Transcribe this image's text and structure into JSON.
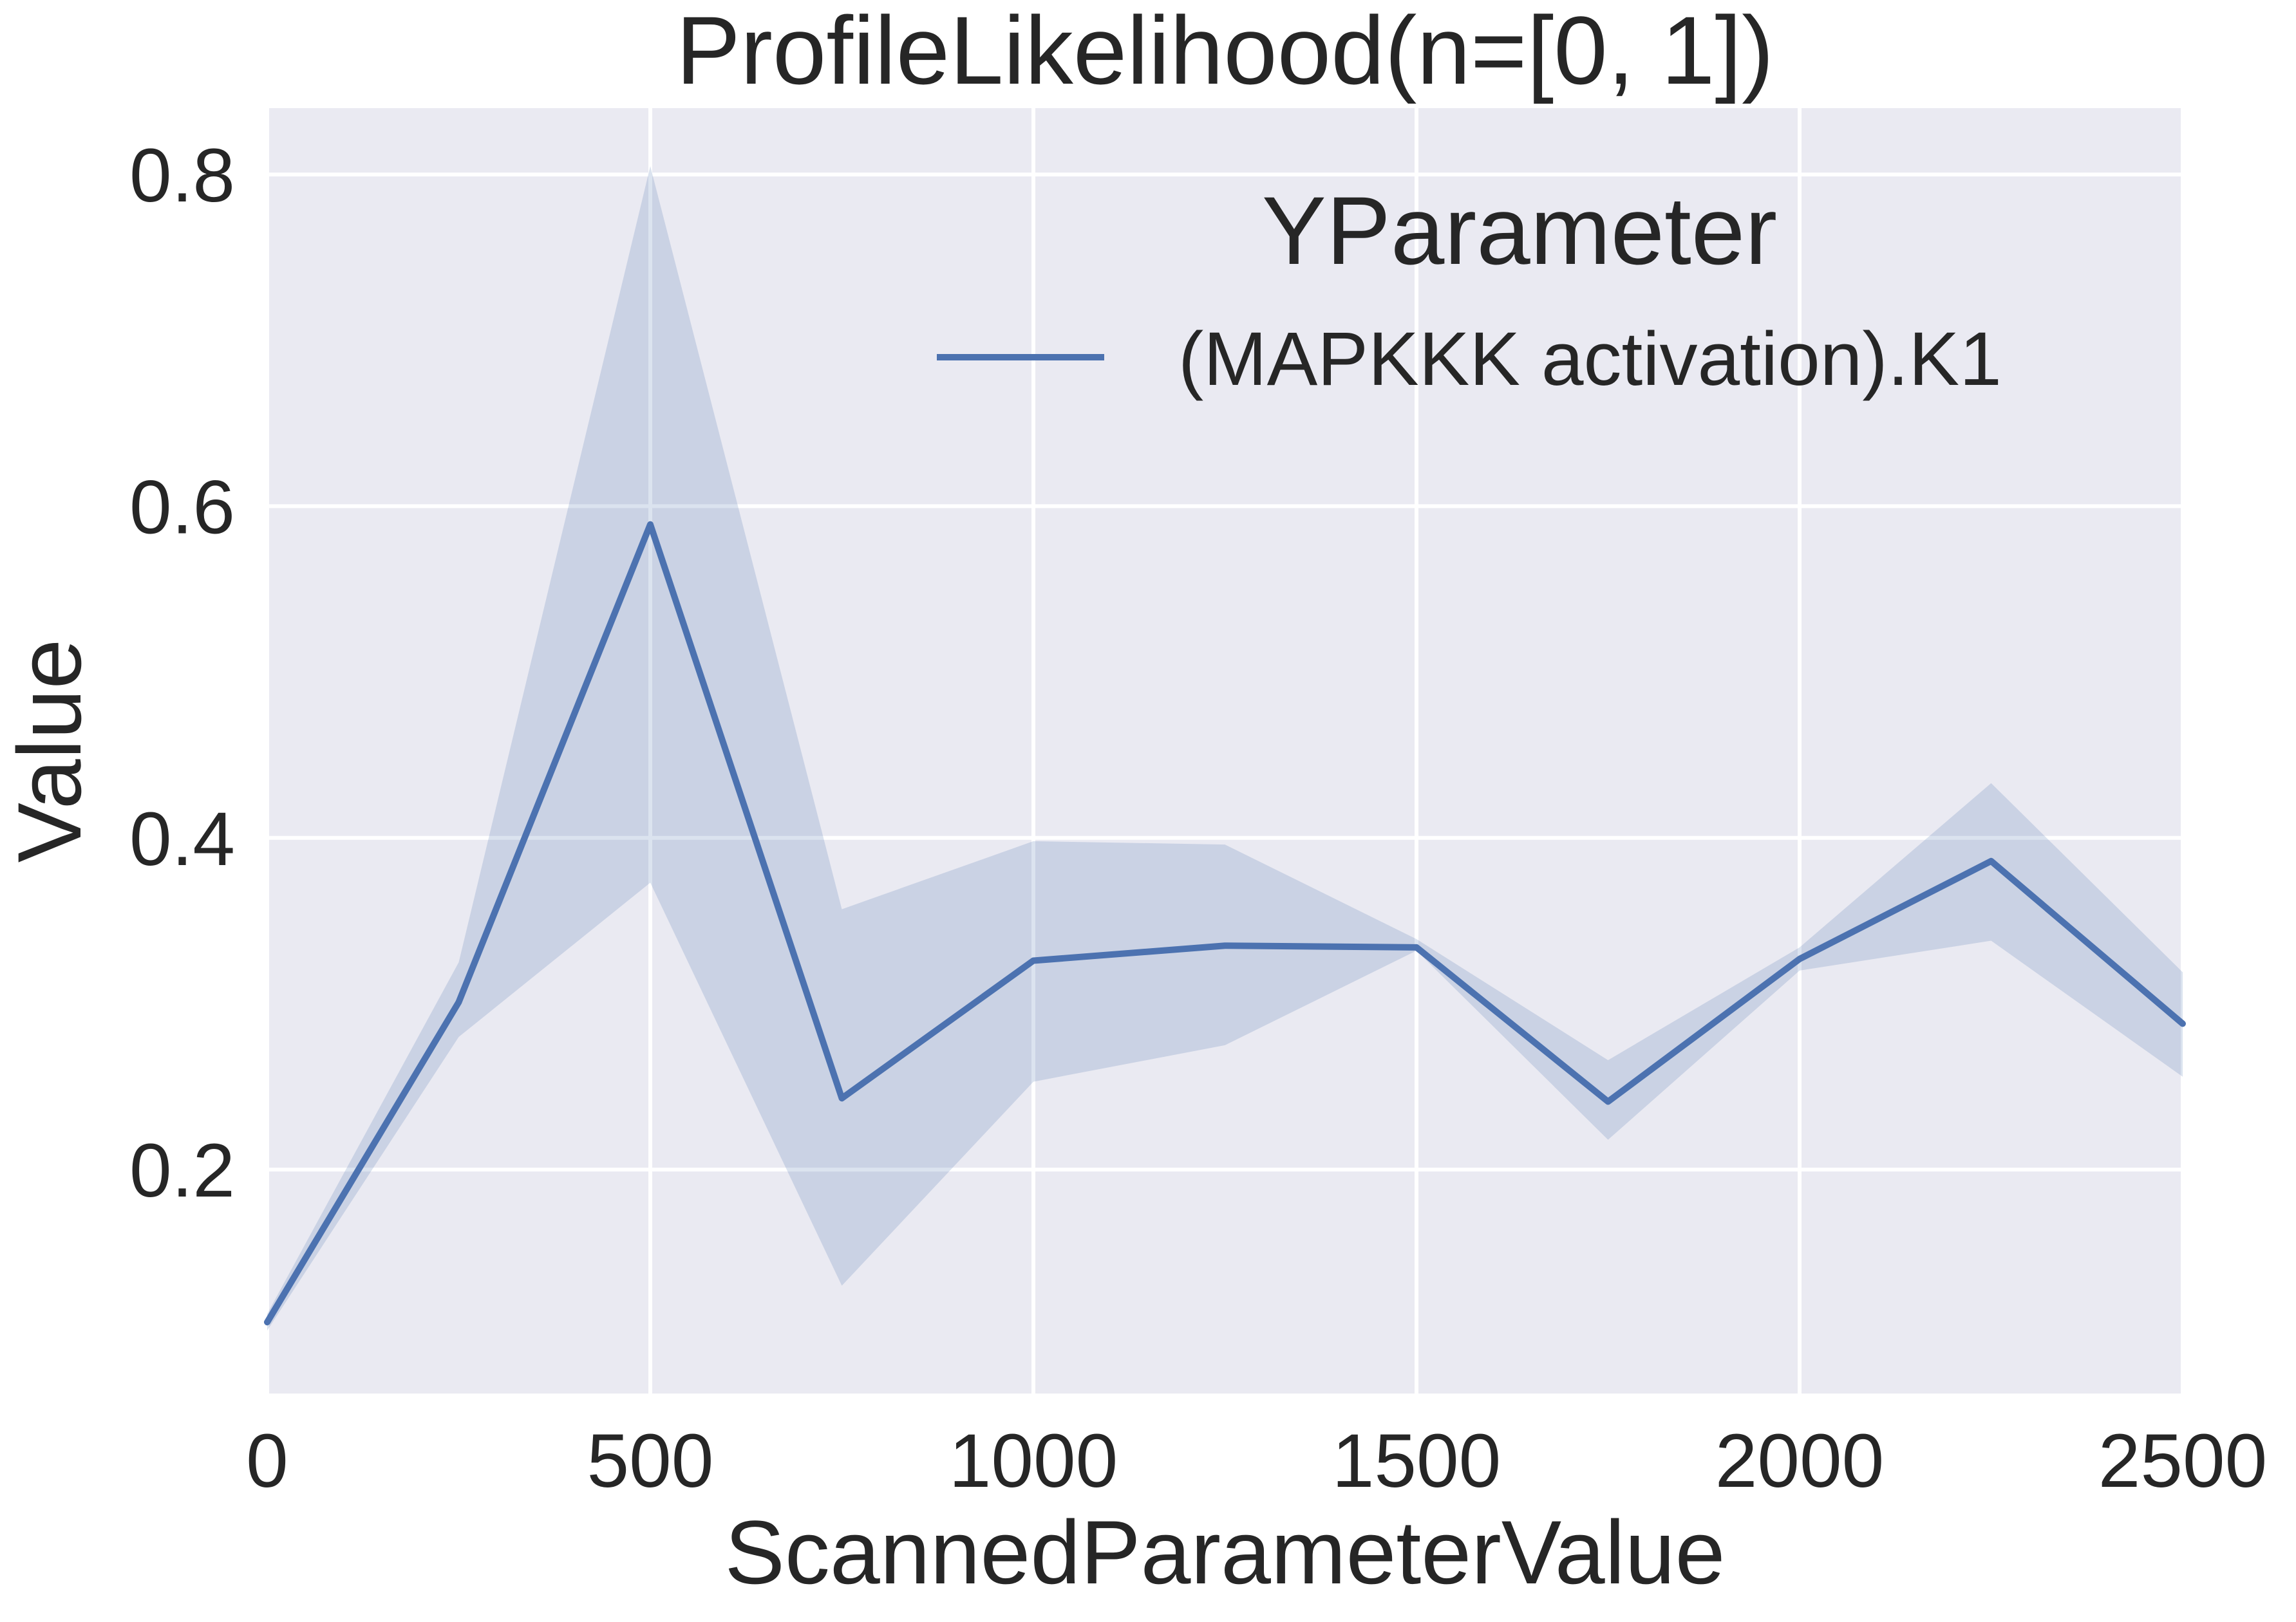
{
  "chart_data": {
    "type": "line",
    "title": "ProfileLikelihood(n=[0, 1])",
    "xlabel": "ScannedParameterValue",
    "ylabel": "Value",
    "xlim": [
      0,
      2500
    ],
    "ylim": [
      0.065,
      0.84
    ],
    "xticks": [
      0,
      500,
      1000,
      1500,
      2000,
      2500
    ],
    "xtick_labels": [
      "0",
      "500",
      "1000",
      "1500",
      "2000",
      "2500"
    ],
    "yticks": [
      0.2,
      0.4,
      0.6,
      0.8
    ],
    "ytick_labels": [
      "0.2",
      "0.4",
      "0.6",
      "0.8"
    ],
    "grid": true,
    "legend": {
      "title": "YParameter",
      "placement": "top-right"
    },
    "colors": {
      "plot_background": "#EAEAF2",
      "grid": "#FFFFFF",
      "line": "#4C72B0",
      "band": "#4C72B0"
    },
    "series": [
      {
        "name": "(MAPKKK activation).K1",
        "x": [
          0,
          250,
          500,
          750,
          1000,
          1250,
          1500,
          1750,
          2000,
          2250,
          2500
        ],
        "y": [
          0.108,
          0.301,
          0.589,
          0.243,
          0.326,
          0.335,
          0.334,
          0.241,
          0.327,
          0.386,
          0.288
        ],
        "ci_lower": [
          0.103,
          0.28,
          0.373,
          0.13,
          0.253,
          0.275,
          0.332,
          0.218,
          0.32,
          0.338,
          0.256
        ],
        "ci_upper": [
          0.113,
          0.325,
          0.805,
          0.357,
          0.398,
          0.396,
          0.339,
          0.266,
          0.334,
          0.433,
          0.319
        ]
      }
    ]
  }
}
